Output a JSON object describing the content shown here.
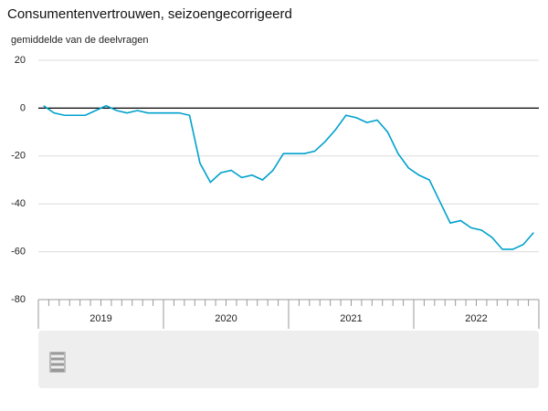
{
  "chart_data": {
    "type": "line",
    "title": "Consumentenvertrouwen, seizoengecorrigeerd",
    "y_label": "gemiddelde van de deelvragen",
    "categories": [
      null,
      null,
      null,
      null,
      null,
      null,
      null,
      null,
      null,
      null,
      null,
      null,
      null,
      null,
      null,
      null,
      null,
      null,
      null,
      null,
      null,
      null,
      null,
      null,
      null,
      null,
      null,
      null,
      null,
      null,
      null,
      null,
      null,
      null,
      null,
      null,
      null,
      null,
      null,
      null,
      null,
      null,
      null,
      null,
      null,
      null,
      null,
      null
    ],
    "category_groups": [
      "2019",
      "2020",
      "2021",
      "2022"
    ],
    "series": [
      {
        "name": "Consumentenvertrouwen",
        "color": "#00a1cd",
        "values": [
          1,
          -2,
          -3,
          -3,
          -3,
          -1,
          1,
          -1,
          -2,
          -1,
          -2,
          -2,
          -2,
          -2,
          -3,
          -23,
          -31,
          -27,
          -26,
          -29,
          -28,
          -30,
          -26,
          -19,
          -19,
          -19,
          -18,
          -14,
          -9,
          -3,
          -4,
          -6,
          -5,
          -10,
          -19,
          -25,
          -28,
          -30,
          -39,
          -48,
          -47,
          -50,
          -51,
          -54,
          -59,
          -59,
          -57,
          -52
        ]
      }
    ],
    "ylim": [
      -80,
      20
    ],
    "yticks": [
      -80,
      -60,
      -40,
      -20,
      0,
      20
    ],
    "grid": true
  }
}
